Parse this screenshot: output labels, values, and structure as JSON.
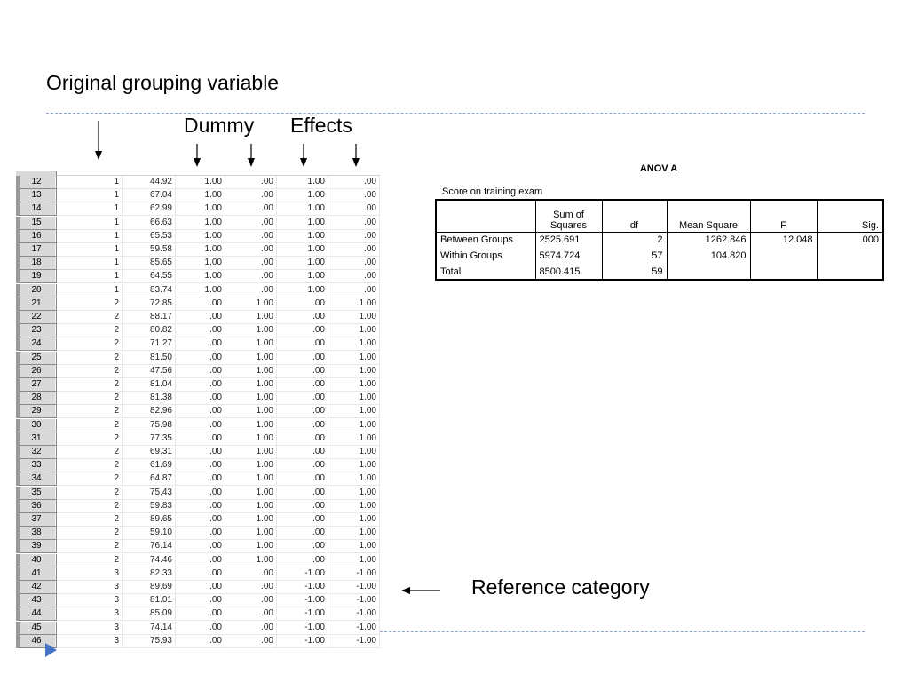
{
  "slide": {
    "title": "Original grouping variable",
    "dummy_label": "Dummy",
    "effects_label": "Effects",
    "reference_label": "Reference category"
  },
  "grid": {
    "rows": [
      [
        "12",
        "1",
        "44.92",
        "1.00",
        ".00",
        "1.00",
        ".00"
      ],
      [
        "13",
        "1",
        "67.04",
        "1.00",
        ".00",
        "1.00",
        ".00"
      ],
      [
        "14",
        "1",
        "62.99",
        "1.00",
        ".00",
        "1.00",
        ".00"
      ],
      [
        "15",
        "1",
        "66.63",
        "1.00",
        ".00",
        "1.00",
        ".00"
      ],
      [
        "16",
        "1",
        "65.53",
        "1.00",
        ".00",
        "1.00",
        ".00"
      ],
      [
        "17",
        "1",
        "59.58",
        "1.00",
        ".00",
        "1.00",
        ".00"
      ],
      [
        "18",
        "1",
        "85.65",
        "1.00",
        ".00",
        "1.00",
        ".00"
      ],
      [
        "19",
        "1",
        "64.55",
        "1.00",
        ".00",
        "1.00",
        ".00"
      ],
      [
        "20",
        "1",
        "83.74",
        "1.00",
        ".00",
        "1.00",
        ".00"
      ],
      [
        "21",
        "2",
        "72.85",
        ".00",
        "1.00",
        ".00",
        "1.00"
      ],
      [
        "22",
        "2",
        "88.17",
        ".00",
        "1.00",
        ".00",
        "1.00"
      ],
      [
        "23",
        "2",
        "80.82",
        ".00",
        "1.00",
        ".00",
        "1.00"
      ],
      [
        "24",
        "2",
        "71.27",
        ".00",
        "1.00",
        ".00",
        "1.00"
      ],
      [
        "25",
        "2",
        "81.50",
        ".00",
        "1.00",
        ".00",
        "1.00"
      ],
      [
        "26",
        "2",
        "47.56",
        ".00",
        "1.00",
        ".00",
        "1.00"
      ],
      [
        "27",
        "2",
        "81.04",
        ".00",
        "1.00",
        ".00",
        "1.00"
      ],
      [
        "28",
        "2",
        "81.38",
        ".00",
        "1.00",
        ".00",
        "1.00"
      ],
      [
        "29",
        "2",
        "82.96",
        ".00",
        "1.00",
        ".00",
        "1.00"
      ],
      [
        "30",
        "2",
        "75.98",
        ".00",
        "1.00",
        ".00",
        "1.00"
      ],
      [
        "31",
        "2",
        "77.35",
        ".00",
        "1.00",
        ".00",
        "1.00"
      ],
      [
        "32",
        "2",
        "69.31",
        ".00",
        "1.00",
        ".00",
        "1.00"
      ],
      [
        "33",
        "2",
        "61.69",
        ".00",
        "1.00",
        ".00",
        "1.00"
      ],
      [
        "34",
        "2",
        "64.87",
        ".00",
        "1.00",
        ".00",
        "1.00"
      ],
      [
        "35",
        "2",
        "75.43",
        ".00",
        "1.00",
        ".00",
        "1.00"
      ],
      [
        "36",
        "2",
        "59.83",
        ".00",
        "1.00",
        ".00",
        "1.00"
      ],
      [
        "37",
        "2",
        "89.65",
        ".00",
        "1.00",
        ".00",
        "1.00"
      ],
      [
        "38",
        "2",
        "59.10",
        ".00",
        "1.00",
        ".00",
        "1.00"
      ],
      [
        "39",
        "2",
        "76.14",
        ".00",
        "1.00",
        ".00",
        "1.00"
      ],
      [
        "40",
        "2",
        "74.46",
        ".00",
        "1.00",
        ".00",
        "1.00"
      ],
      [
        "41",
        "3",
        "82.33",
        ".00",
        ".00",
        "-1.00",
        "-1.00"
      ],
      [
        "42",
        "3",
        "89.69",
        ".00",
        ".00",
        "-1.00",
        "-1.00"
      ],
      [
        "43",
        "3",
        "81.01",
        ".00",
        ".00",
        "-1.00",
        "-1.00"
      ],
      [
        "44",
        "3",
        "85.09",
        ".00",
        ".00",
        "-1.00",
        "-1.00"
      ],
      [
        "45",
        "3",
        "74.14",
        ".00",
        ".00",
        "-1.00",
        "-1.00"
      ],
      [
        "46",
        "3",
        "75.93",
        ".00",
        ".00",
        "-1.00",
        "-1.00"
      ]
    ]
  },
  "anova": {
    "title": "ANOV A",
    "subtitle": "Score on training exam",
    "headers": [
      "Sum of Squares",
      "df",
      "Mean Square",
      "F",
      "Sig."
    ],
    "rows": [
      {
        "label": "Between Groups",
        "sum": "2525.691",
        "df": "2",
        "ms": "1262.846",
        "f": "12.048",
        "sig": ".000"
      },
      {
        "label": "Within Groups",
        "sum": "5974.724",
        "df": "57",
        "ms": "104.820",
        "f": "",
        "sig": ""
      },
      {
        "label": "Total",
        "sum": "8500.415",
        "df": "59",
        "ms": "",
        "f": "",
        "sig": ""
      }
    ]
  },
  "icons": {
    "bullet": "play-triangle-icon",
    "accent_color": "#4472c4"
  }
}
